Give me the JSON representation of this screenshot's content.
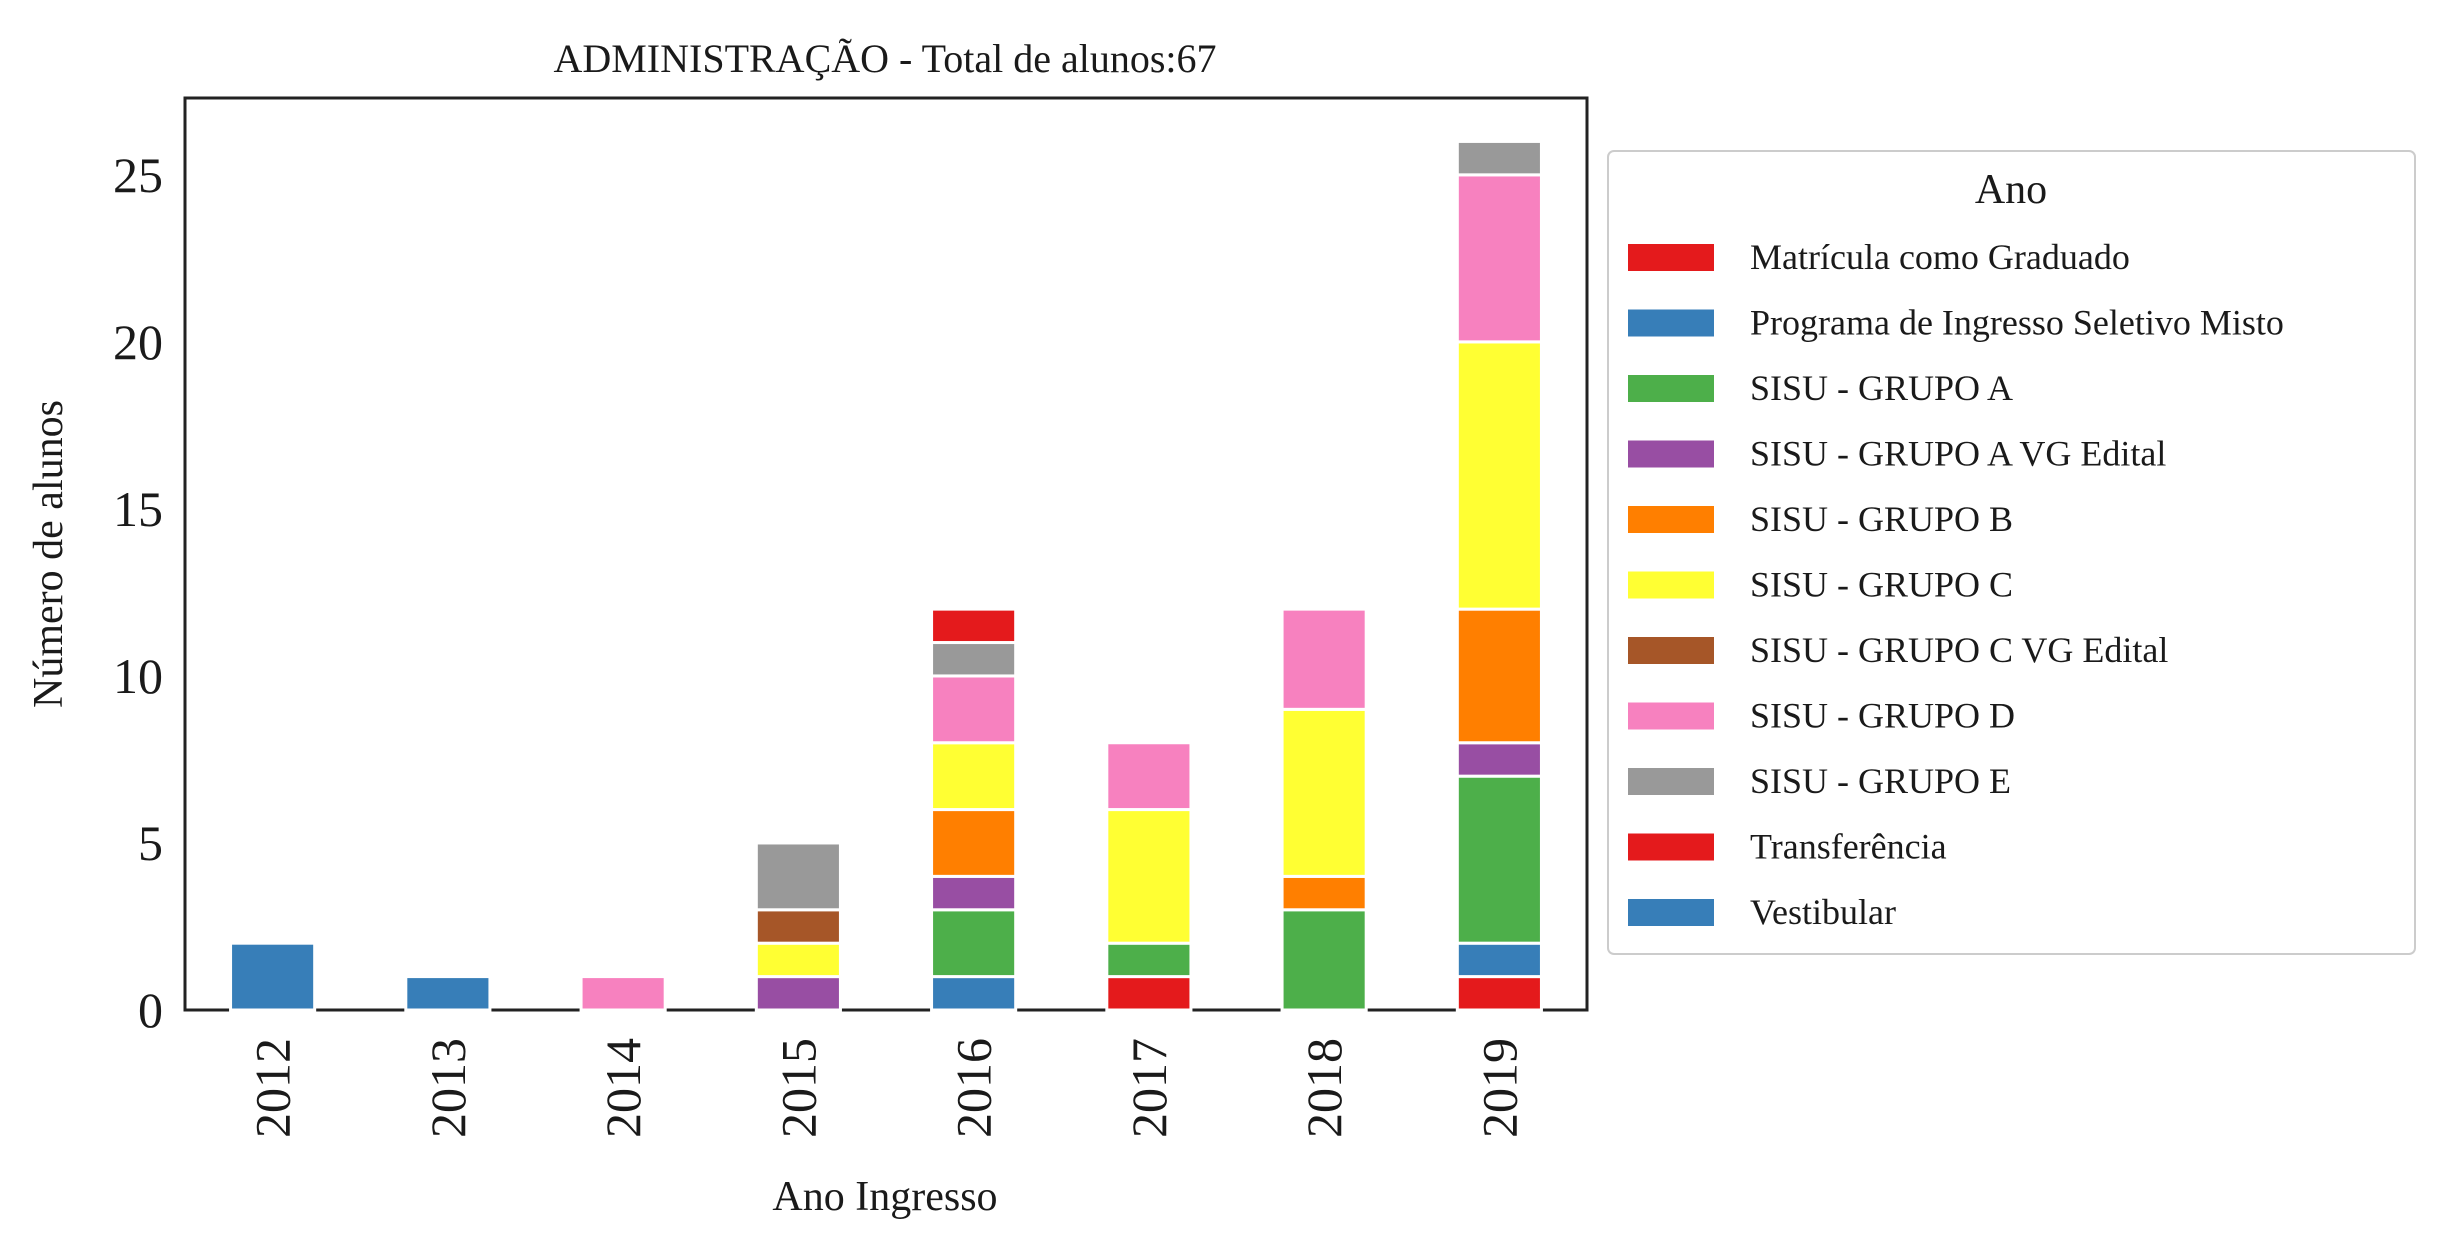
{
  "chart_data": {
    "type": "bar",
    "stacked": true,
    "title": "ADMINISTRAÇÃO - Total de alunos:67",
    "xlabel": "Ano Ingresso",
    "ylabel": "Número de alunos",
    "categories": [
      "2012",
      "2013",
      "2014",
      "2015",
      "2016",
      "2017",
      "2018",
      "2019"
    ],
    "ylim": [
      0,
      27.3
    ],
    "yticks": [
      0,
      5,
      10,
      15,
      20,
      25
    ],
    "grid": false,
    "legend": {
      "title": "Ano",
      "placement": "outside-right"
    },
    "series": [
      {
        "name": "Matrícula como Graduado",
        "color": "#e41a1c",
        "values": [
          0,
          0,
          0,
          0,
          0,
          0,
          0,
          0
        ]
      },
      {
        "name": "Programa de Ingresso Seletivo Misto",
        "color": "#377eb8",
        "values": [
          0,
          0,
          0,
          0,
          0,
          0,
          0,
          0
        ]
      },
      {
        "name": "SISU - GRUPO A",
        "color": "#4daf4a",
        "values": [
          0,
          0,
          0,
          0,
          0,
          0,
          0,
          0
        ]
      },
      {
        "name": "SISU - GRUPO A VG Edital",
        "color": "#984ea3",
        "values": [
          0,
          0,
          0,
          0,
          0,
          0,
          0,
          0
        ]
      },
      {
        "name": "SISU - GRUPO B",
        "color": "#ff7f00",
        "values": [
          0,
          0,
          0,
          0,
          0,
          0,
          0,
          0
        ]
      },
      {
        "name": "SISU - GRUPO C",
        "color": "#ffff33",
        "values": [
          0,
          0,
          0,
          0,
          0,
          0,
          0,
          0
        ]
      },
      {
        "name": "SISU - GRUPO C VG Edital",
        "color": "#a65628",
        "values": [
          0,
          0,
          0,
          0,
          0,
          0,
          0,
          0
        ]
      },
      {
        "name": "SISU - GRUPO D",
        "color": "#f781bf",
        "values": [
          0,
          0,
          0,
          0,
          0,
          0,
          0,
          0
        ]
      },
      {
        "name": "SISU - GRUPO E",
        "color": "#999999",
        "values": [
          0,
          0,
          0,
          0,
          0,
          0,
          0,
          0
        ]
      },
      {
        "name": "Transferência",
        "color": "#e41a1c",
        "values": [
          0,
          0,
          0,
          0,
          0,
          0,
          0,
          0
        ]
      },
      {
        "name": "Vestibular",
        "color": "#377eb8",
        "values": [
          0,
          0,
          0,
          0,
          0,
          0,
          0,
          0
        ]
      }
    ],
    "bars": [
      {
        "category": "2012",
        "segments": [
          {
            "series": "Vestibular",
            "value": 2
          }
        ]
      },
      {
        "category": "2013",
        "segments": [
          {
            "series": "Vestibular",
            "value": 1
          }
        ]
      },
      {
        "category": "2014",
        "segments": [
          {
            "series": "SISU - GRUPO D",
            "value": 1
          }
        ]
      },
      {
        "category": "2015",
        "segments": [
          {
            "series": "SISU - GRUPO A VG Edital",
            "value": 1
          },
          {
            "series": "SISU - GRUPO C",
            "value": 1
          },
          {
            "series": "SISU - GRUPO C VG Edital",
            "value": 1
          },
          {
            "series": "SISU - GRUPO E",
            "value": 2
          }
        ]
      },
      {
        "category": "2016",
        "segments": [
          {
            "series": "Programa de Ingresso Seletivo Misto",
            "value": 1
          },
          {
            "series": "SISU - GRUPO A",
            "value": 2
          },
          {
            "series": "SISU - GRUPO A VG Edital",
            "value": 1
          },
          {
            "series": "SISU - GRUPO B",
            "value": 2
          },
          {
            "series": "SISU - GRUPO C",
            "value": 2
          },
          {
            "series": "SISU - GRUPO D",
            "value": 2
          },
          {
            "series": "SISU - GRUPO E",
            "value": 1
          },
          {
            "series": "Transferência",
            "value": 1
          }
        ]
      },
      {
        "category": "2017",
        "segments": [
          {
            "series": "Matrícula como Graduado",
            "value": 1
          },
          {
            "series": "SISU - GRUPO A",
            "value": 1
          },
          {
            "series": "SISU - GRUPO C",
            "value": 4
          },
          {
            "series": "SISU - GRUPO D",
            "value": 2
          }
        ]
      },
      {
        "category": "2018",
        "segments": [
          {
            "series": "SISU - GRUPO A",
            "value": 3
          },
          {
            "series": "SISU - GRUPO B",
            "value": 1
          },
          {
            "series": "SISU - GRUPO C",
            "value": 5
          },
          {
            "series": "SISU - GRUPO D",
            "value": 3
          }
        ]
      },
      {
        "category": "2019",
        "segments": [
          {
            "series": "Matrícula como Graduado",
            "value": 1
          },
          {
            "series": "Programa de Ingresso Seletivo Misto",
            "value": 1
          },
          {
            "series": "SISU - GRUPO A",
            "value": 5
          },
          {
            "series": "SISU - GRUPO A VG Edital",
            "value": 1
          },
          {
            "series": "SISU - GRUPO B",
            "value": 4
          },
          {
            "series": "SISU - GRUPO C",
            "value": 8
          },
          {
            "series": "SISU - GRUPO D",
            "value": 5
          },
          {
            "series": "SISU - GRUPO E",
            "value": 1
          }
        ]
      }
    ]
  }
}
